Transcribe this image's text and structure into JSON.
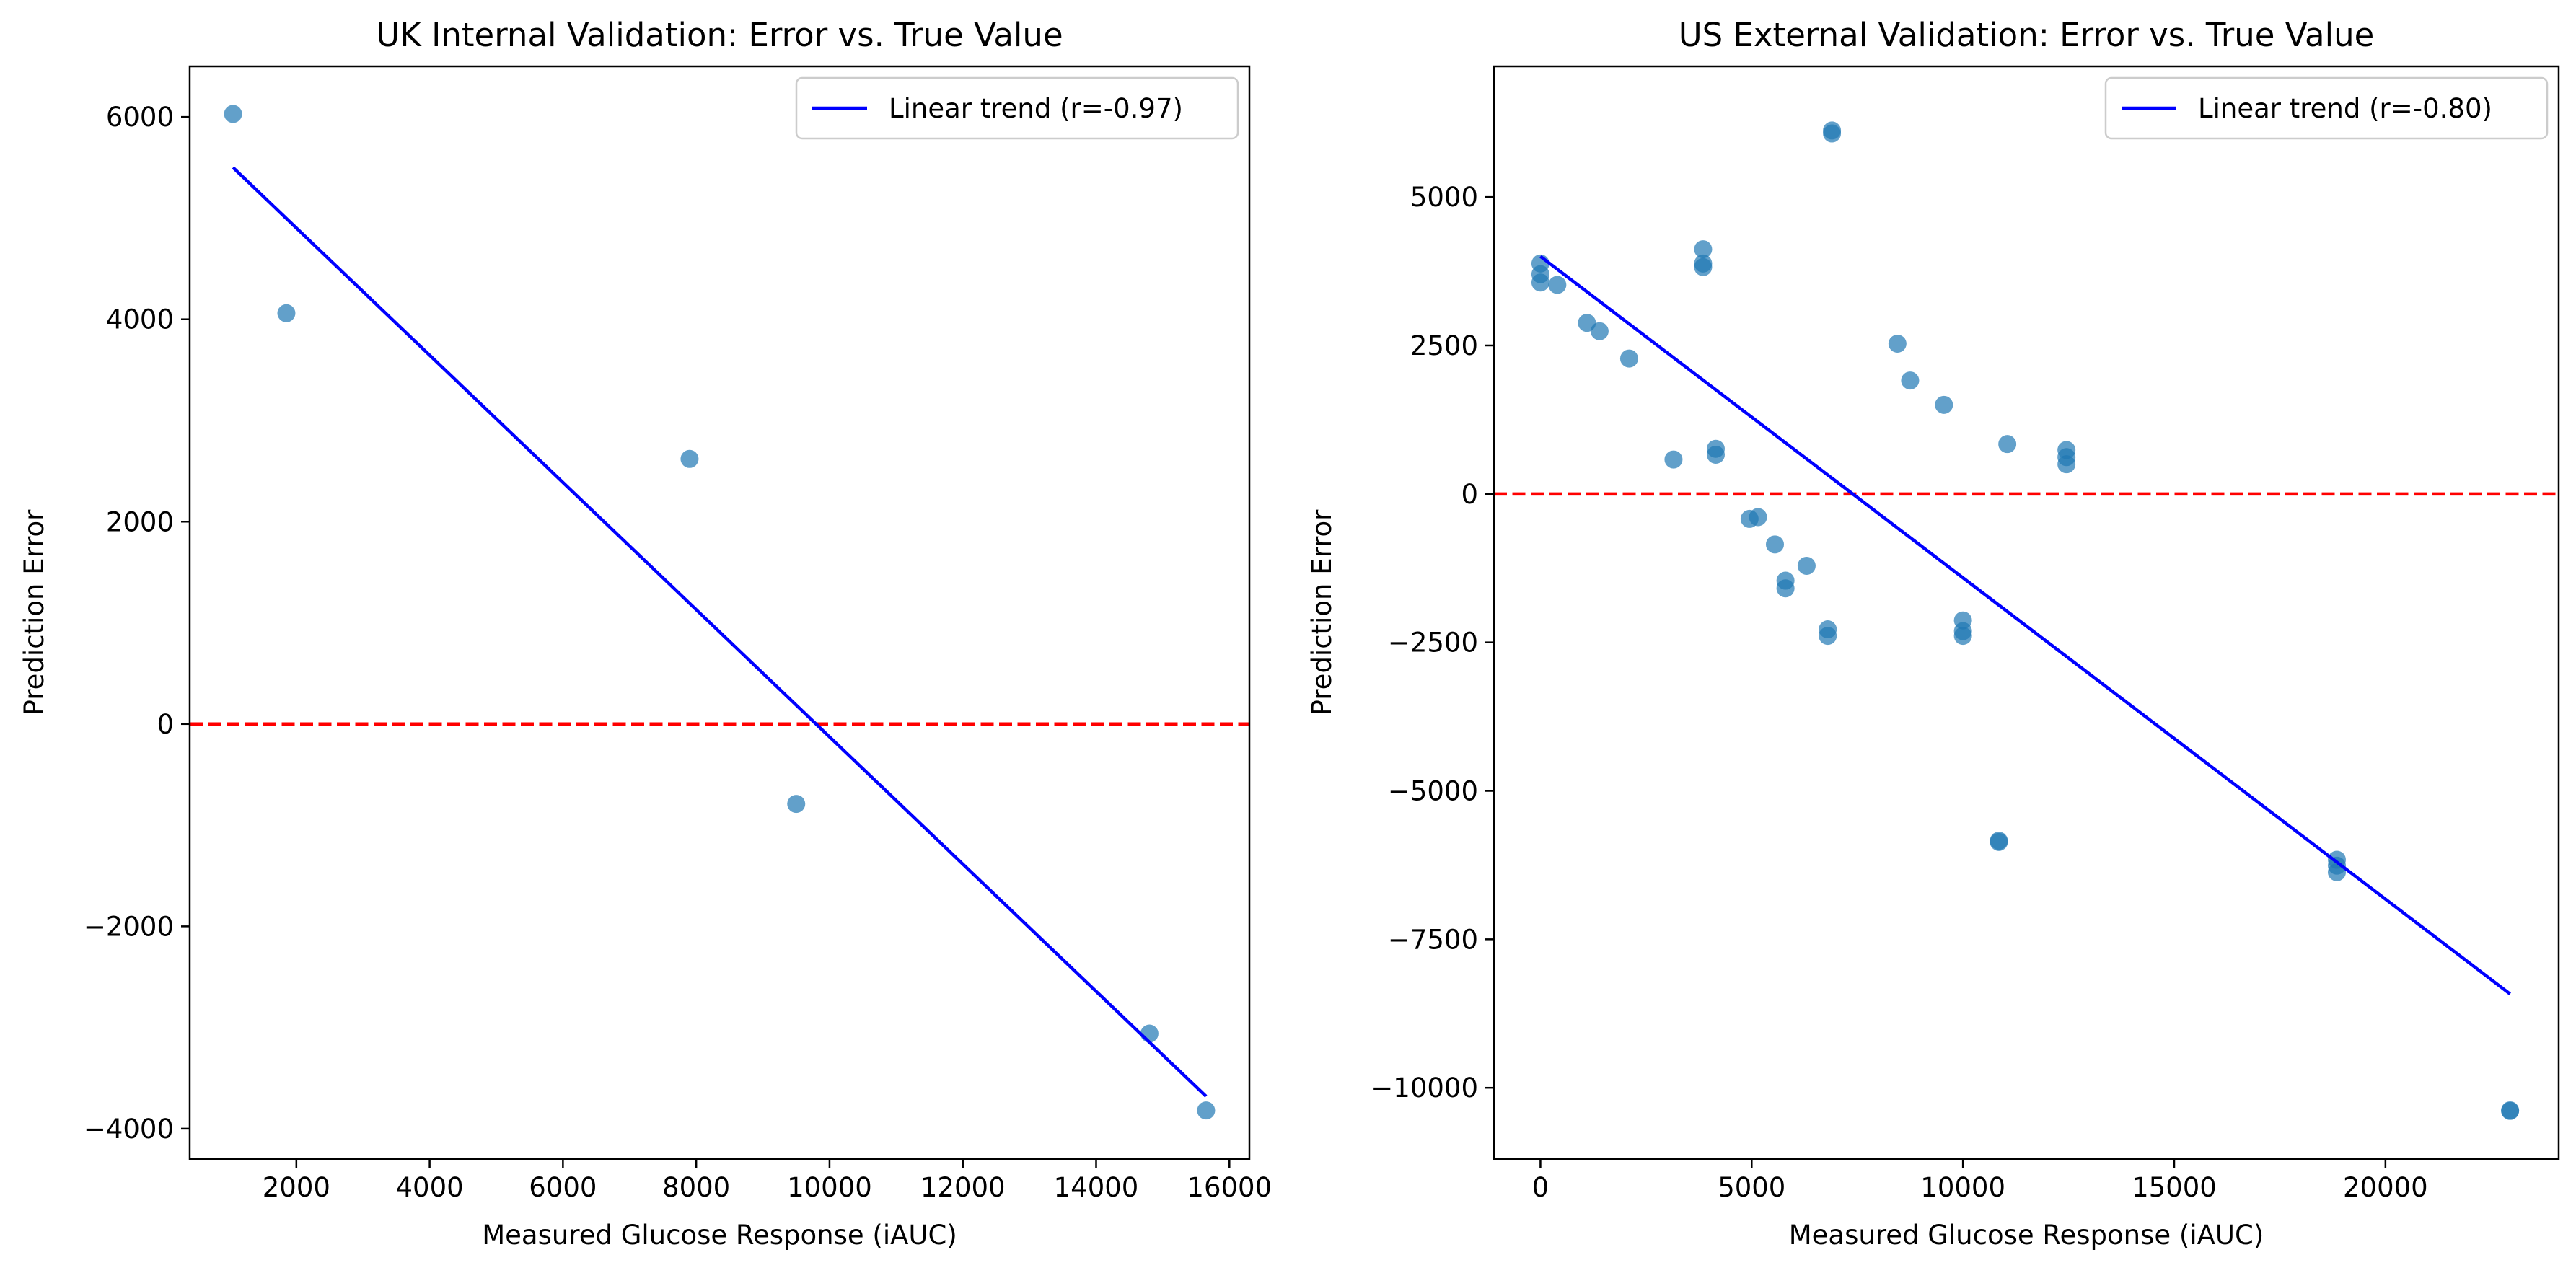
{
  "chart_data": [
    {
      "type": "scatter",
      "title": "UK Internal Validation: Error vs. True Value",
      "xlabel": "Measured Glucose Response (iAUC)",
      "ylabel": "Prediction Error",
      "xlim": [
        400,
        16300
      ],
      "ylim": [
        -4300,
        6500
      ],
      "xticks": [
        2000,
        4000,
        6000,
        8000,
        10000,
        12000,
        14000,
        16000
      ],
      "yticks": [
        -4000,
        -2000,
        0,
        2000,
        4000,
        6000
      ],
      "grid": false,
      "legend_position": "top-right",
      "points": {
        "color": "#1f77b4",
        "x": [
          1050,
          1850,
          7900,
          9500,
          14800,
          15650
        ],
        "y": [
          6030,
          4060,
          2620,
          -790,
          -3060,
          -3820
        ]
      },
      "trend": {
        "name": "Linear trend (r=-0.97)",
        "color": "#0000ff",
        "x": [
          1050,
          15650
        ],
        "y": [
          5500,
          -3680
        ]
      },
      "reference_line": {
        "y": 0,
        "color": "#ff0000",
        "style": "dashed"
      }
    },
    {
      "type": "scatter",
      "title": "US External Validation: Error vs. True Value",
      "xlabel": "Measured Glucose Response (iAUC)",
      "ylabel": "Prediction Error",
      "xlim": [
        -1100,
        24100
      ],
      "ylim": [
        -11200,
        7200
      ],
      "xticks": [
        0,
        5000,
        10000,
        15000,
        20000
      ],
      "yticks": [
        -10000,
        -7500,
        -5000,
        -2500,
        0,
        2500,
        5000
      ],
      "grid": false,
      "legend_position": "top-right",
      "points": {
        "color": "#1f77b4",
        "x": [
          0,
          0,
          0,
          400,
          1100,
          1400,
          2100,
          3150,
          3850,
          3850,
          3850,
          4150,
          4150,
          4950,
          5150,
          5550,
          5800,
          5800,
          6300,
          6800,
          6800,
          6900,
          6900,
          8450,
          8750,
          9550,
          10000,
          10000,
          10000,
          10850,
          10850,
          11050,
          12450,
          12450,
          12450,
          18850,
          18850,
          18850,
          22950,
          22950
        ],
        "y": [
          3880,
          3700,
          3560,
          3520,
          2880,
          2740,
          2280,
          580,
          4120,
          3880,
          3820,
          760,
          660,
          -420,
          -390,
          -850,
          -1460,
          -1590,
          -1210,
          -2280,
          -2390,
          6120,
          6070,
          2530,
          1910,
          1500,
          -2130,
          -2310,
          -2390,
          -5840,
          -5860,
          840,
          740,
          620,
          500,
          -6160,
          -6260,
          -6370,
          -10390,
          -10380
        ]
      },
      "trend": {
        "name": "Linear trend (r=-0.80)",
        "color": "#0000ff",
        "x": [
          0,
          22950
        ],
        "y": [
          4000,
          -8420
        ]
      },
      "reference_line": {
        "y": 0,
        "color": "#ff0000",
        "style": "dashed"
      }
    }
  ]
}
